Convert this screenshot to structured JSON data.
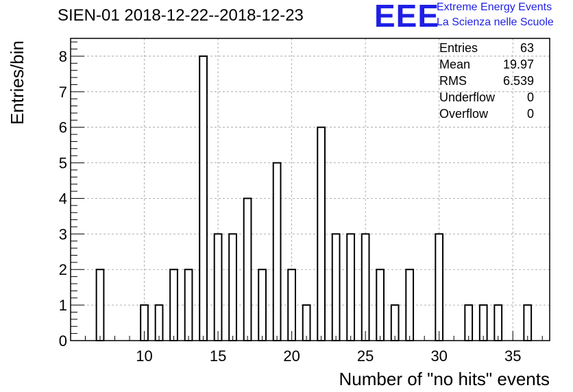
{
  "title": "SIEN-01 2018-12-22--2018-12-23",
  "logo": {
    "mark": "EEE",
    "line1": "Extreme Energy Events",
    "line2": "La Scienza nelle Scuole"
  },
  "stats": [
    {
      "label": "Entries",
      "value": "63"
    },
    {
      "label": "Mean",
      "value": "19.97"
    },
    {
      "label": "RMS",
      "value": "6.539"
    },
    {
      "label": "Underflow",
      "value": "0"
    },
    {
      "label": "Overflow",
      "value": "0"
    }
  ],
  "chart_data": {
    "type": "bar",
    "title": "SIEN-01 2018-12-22--2018-12-23",
    "xlabel": "Number of \"no hits\" events",
    "ylabel": "Entries/bin",
    "xlim": [
      5,
      37.5
    ],
    "ylim": [
      0,
      8.5
    ],
    "xticks": [
      10,
      15,
      20,
      25,
      30,
      35
    ],
    "yticks": [
      0,
      1,
      2,
      3,
      4,
      5,
      6,
      7,
      8
    ],
    "grid": true,
    "bar_width": 0.5,
    "x": [
      7,
      10,
      11,
      12,
      13,
      14,
      15,
      16,
      17,
      18,
      19,
      20,
      21,
      22,
      23,
      24,
      25,
      26,
      27,
      28,
      30,
      32,
      33,
      34,
      36
    ],
    "values": [
      2,
      1,
      1,
      2,
      2,
      8,
      3,
      3,
      4,
      2,
      5,
      2,
      1,
      6,
      3,
      3,
      3,
      2,
      1,
      2,
      3,
      1,
      1,
      1,
      1
    ]
  }
}
